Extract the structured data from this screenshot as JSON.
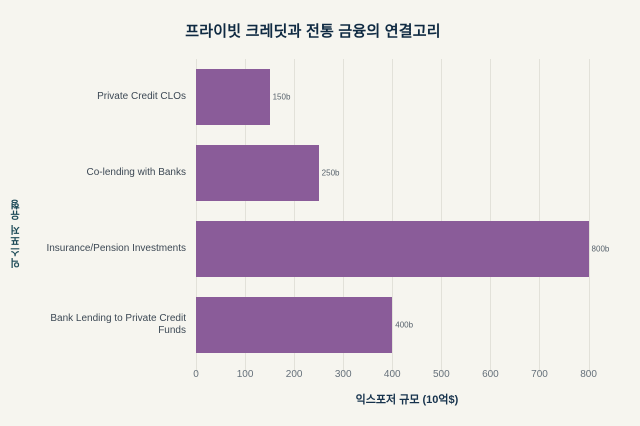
{
  "title": "프라이빗 크레딧과 전통 금융의 연결고리",
  "chart_data": {
    "type": "bar",
    "orientation": "horizontal",
    "title": "프라이빗 크레딧과 전통 금융의 연결고리",
    "categories": [
      "Private Credit CLOs",
      "Co-lending with Banks",
      "Insurance/Pension Investments",
      "Bank Lending to Private Credit Funds"
    ],
    "values": [
      150,
      250,
      800,
      400
    ],
    "value_labels": [
      "150b",
      "250b",
      "800b",
      "400b"
    ],
    "xlabel": "익스포저 규모 (10억$)",
    "ylabel": "익스포저 유형",
    "xlim": [
      0,
      860
    ],
    "xticks": [
      0,
      100,
      200,
      300,
      400,
      500,
      600,
      700,
      800
    ],
    "grid": true,
    "legend": "none",
    "bar_color": "#8a5c99",
    "background_color": "#f6f5ef",
    "gridline_color": "#e2e1d9"
  }
}
